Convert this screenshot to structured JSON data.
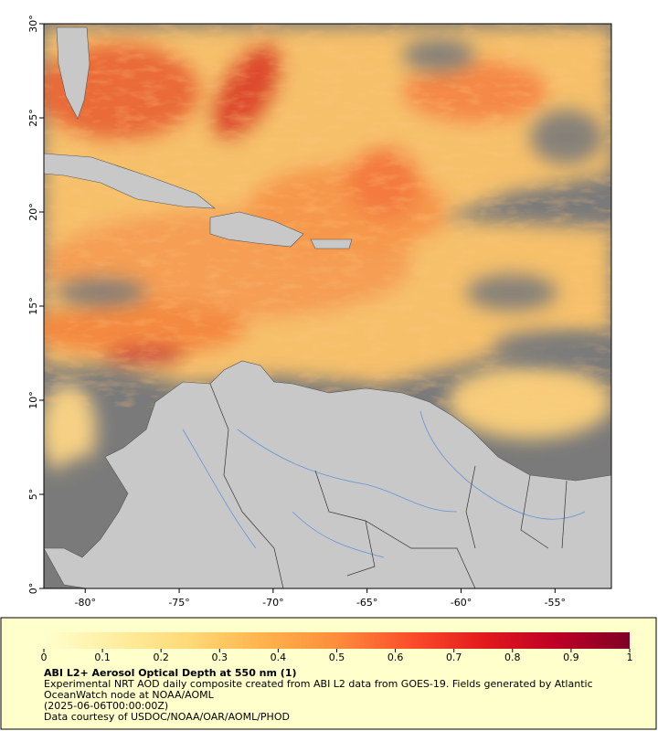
{
  "map": {
    "xlim": [
      -82.2,
      -52
    ],
    "ylim": [
      0,
      30
    ],
    "xticks": [
      {
        "value": -80,
        "label": "-80°"
      },
      {
        "value": -75,
        "label": "-75°"
      },
      {
        "value": -70,
        "label": "-70°"
      },
      {
        "value": -65,
        "label": "-65°"
      },
      {
        "value": -60,
        "label": "-60°"
      },
      {
        "value": -55,
        "label": "-55°"
      }
    ],
    "yticks": [
      {
        "value": 0,
        "label": "0°"
      },
      {
        "value": 5,
        "label": "5°"
      },
      {
        "value": 10,
        "label": "10°"
      },
      {
        "value": 15,
        "label": "15°"
      },
      {
        "value": 20,
        "label": "20°"
      },
      {
        "value": 25,
        "label": "25°"
      },
      {
        "value": 30,
        "label": "30°"
      }
    ]
  },
  "colorbar": {
    "range": [
      0,
      1
    ],
    "ticks": [
      0,
      0.1,
      0.2,
      0.3,
      0.4,
      0.5,
      0.6,
      0.7,
      0.8,
      0.9,
      1
    ],
    "colors": [
      "#ffffcc",
      "#ffeda0",
      "#fed976",
      "#feb24c",
      "#fd8d3c",
      "#fc4e2a",
      "#e31a1c",
      "#bd0026",
      "#800026"
    ]
  },
  "caption": {
    "title": "ABI L2+ Aerosol Optical Depth at 550 nm (1)",
    "description": "Experimental NRT AOD daily composite created from ABI L2 data from GOES-19. Fields generated by Atlantic OceanWatch node at NOAA/AOML",
    "time": "(2025-06-06T00:00:00Z)",
    "credit": "Data courtesy of USDOC/NOAA/OAR/AOML/PHOD"
  }
}
